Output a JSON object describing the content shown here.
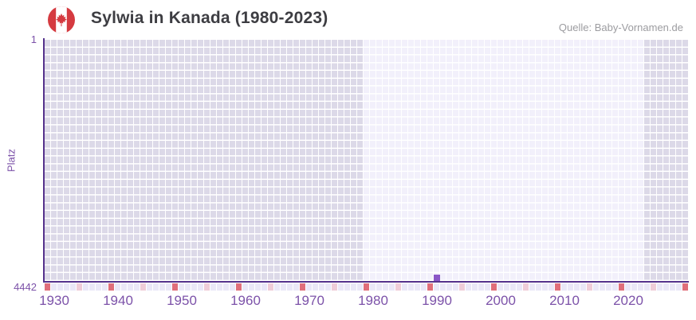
{
  "header": {
    "title": "Sylwia in Kanada (1980-2023)",
    "source": "Quelle: Baby-Vornamen.de",
    "flag_icon": "canada-flag-icon"
  },
  "chart_data": {
    "type": "bar",
    "title": "Sylwia in Kanada (1980-2023)",
    "xlabel": "",
    "ylabel": "Platz",
    "y_axis": {
      "top_label": "1",
      "bottom_label": "4442",
      "min": 1,
      "max": 4442,
      "inverted_rank_axis": true
    },
    "x_axis": {
      "start_year": 1929,
      "end_year": 2029,
      "tick_labels": [
        "1930",
        "1940",
        "1950",
        "1960",
        "1970",
        "1980",
        "1990",
        "2000",
        "2010",
        "2020"
      ],
      "first_tick_year": 1930,
      "tick_step": 10
    },
    "series": [
      {
        "name": "Platz",
        "points": [
          {
            "year": 1990,
            "rank": 4442
          }
        ]
      }
    ],
    "highlight_band": {
      "from_year": 1979,
      "to_year": 2022
    },
    "tick_marker_rule": {
      "red_years_ending_in": 9,
      "pink_years_ending_in": 4
    },
    "grid_rows": 31,
    "legend": "none",
    "grid": "checkered-background",
    "colors": {
      "bar": "#8a56c7",
      "axis_line": "#55318c",
      "axis_text": "#7c52a9",
      "cell_dark": "#dcd9e8",
      "cell_light": "#f2f0fb",
      "tick_cell": "#eae7f7",
      "tick_red": "#e06e7a",
      "tick_pink": "#efccd8",
      "flag_red": "#d53a40"
    }
  }
}
